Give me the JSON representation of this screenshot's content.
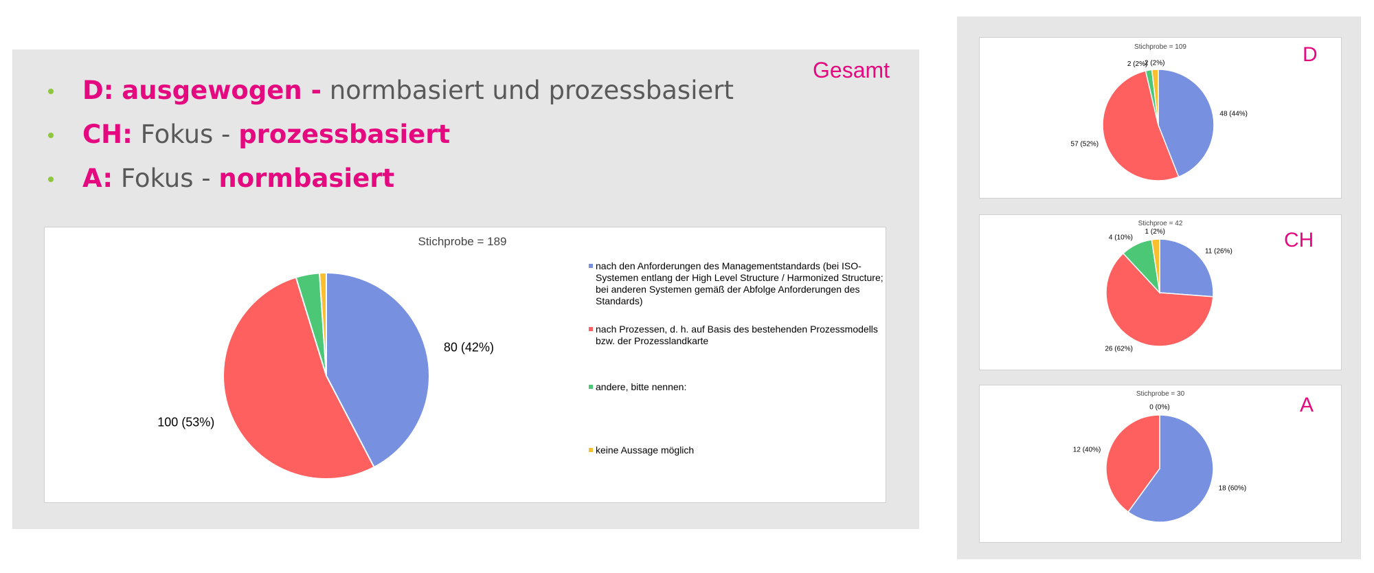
{
  "bullets": [
    {
      "country": "D:",
      "emph1": "ausgewogen -",
      "text": " normbasiert und prozessbasiert"
    },
    {
      "country": "CH:",
      "text": " Fokus - ",
      "emph2": "prozessbasiert"
    },
    {
      "country": "A:",
      "text": " Fokus - ",
      "emph2": "normbasiert"
    }
  ],
  "colors": {
    "accent": "#e5097f",
    "bullet": "#8dc63f",
    "blue": "#7790e0",
    "red": "#fe5f5f",
    "green": "#4cc776",
    "yellow": "#fbbe2c"
  },
  "legend": [
    "nach den Anforderungen des Managementstandards (bei ISO-Systemen entlang der High Level Structure / Harmonized Structure; bei anderen Systemen gemäß der Abfolge Anforderungen des Standards)",
    "nach Prozessen, d. h. auf Basis des bestehenden Prozessmodells bzw. der Prozesslandkarte",
    "andere, bitte nennen:",
    "keine Aussage möglich"
  ],
  "chart_data": [
    {
      "type": "pie",
      "region": "Gesamt",
      "title": "Stichprobe = 189",
      "values": [
        80,
        100,
        7,
        2
      ],
      "labels": [
        "80 (42%)",
        "100 (53%)",
        "",
        ""
      ]
    },
    {
      "type": "pie",
      "region": "D",
      "title": "Stichprobe = 109",
      "values": [
        48,
        57,
        2,
        2
      ],
      "labels": [
        "48 (44%)",
        "57 (52%)",
        "2 (2%)",
        "2 (2%)"
      ]
    },
    {
      "type": "pie",
      "region": "CH",
      "title": "Stichproe = 42",
      "values": [
        11,
        26,
        4,
        1
      ],
      "labels": [
        "11 (26%)",
        "26 (62%)",
        "4 (10%)",
        "1 (2%)"
      ]
    },
    {
      "type": "pie",
      "region": "A",
      "title": "Stichprobe = 30",
      "values": [
        18,
        12,
        0,
        0
      ],
      "labels": [
        "18 (60%)",
        "12 (40%)",
        "",
        "0 (0%)"
      ]
    }
  ]
}
